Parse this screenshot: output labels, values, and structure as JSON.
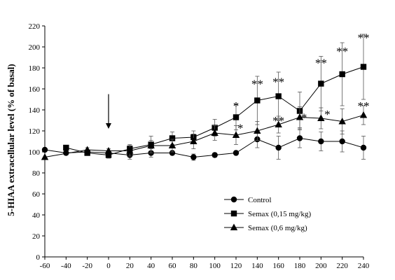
{
  "chart_data": {
    "type": "line",
    "ylabel": "5-HIAA extracellular level (% of basal)",
    "xlabel": "",
    "x": [
      -60,
      -40,
      -20,
      0,
      20,
      40,
      60,
      80,
      100,
      120,
      140,
      160,
      180,
      200,
      220,
      240
    ],
    "x_ticks": [
      "-60",
      "-40",
      "-20",
      "0",
      "20",
      "40",
      "60",
      "80",
      "100",
      "120",
      "140",
      "160",
      "180",
      "200",
      "220",
      "240"
    ],
    "y_ticks": [
      "0",
      "20",
      "40",
      "60",
      "80",
      "100",
      "120",
      "140",
      "160",
      "180",
      "200",
      "220"
    ],
    "xlim": [
      -60,
      240
    ],
    "ylim": [
      0,
      220
    ],
    "grid": false,
    "legend_position": "bottom-right",
    "injection_arrow": {
      "x": 0,
      "y_from": 155,
      "y_to": 122
    },
    "series": [
      {
        "name": "Control",
        "marker": "circle",
        "values": [
          102,
          99,
          100,
          99,
          97,
          99,
          99,
          95,
          97,
          99,
          112,
          104,
          113,
          110,
          110,
          104
        ],
        "errors": [
          0,
          2,
          2,
          2,
          4,
          4,
          2,
          3,
          2,
          2,
          8,
          11,
          9,
          9,
          10,
          11
        ]
      },
      {
        "name": "Semax (0,15 mg/kg)",
        "marker": "square",
        "values": [
          null,
          104,
          99,
          97,
          103,
          107,
          113,
          114,
          123,
          133,
          149,
          153,
          139,
          165,
          174,
          181
        ],
        "errors": [
          0,
          2,
          2,
          3,
          4,
          8,
          6,
          6,
          8,
          12,
          23,
          23,
          18,
          26,
          30,
          31
        ]
      },
      {
        "name": "Semax (0,6 mg/kg)",
        "marker": "triangle",
        "values": [
          95,
          null,
          102,
          101,
          101,
          106,
          106,
          110,
          118,
          116,
          120,
          126,
          133,
          132,
          129,
          135
        ],
        "errors": [
          0,
          0,
          2,
          2,
          5,
          5,
          6,
          7,
          7,
          9,
          9,
          8,
          10,
          10,
          12,
          9
        ]
      }
    ],
    "annotations": [
      {
        "text": "*",
        "x": 120,
        "y": 144
      },
      {
        "text": "*",
        "x": 124,
        "y": 123
      },
      {
        "text": "**",
        "x": 140,
        "y": 165
      },
      {
        "text": "**",
        "x": 160,
        "y": 167
      },
      {
        "text": "**",
        "x": 160,
        "y": 130
      },
      {
        "text": "*",
        "x": 184,
        "y": 133
      },
      {
        "text": "**",
        "x": 200,
        "y": 185
      },
      {
        "text": "*",
        "x": 206,
        "y": 136
      },
      {
        "text": "**",
        "x": 220,
        "y": 196
      },
      {
        "text": "**",
        "x": 240,
        "y": 209
      },
      {
        "text": "**",
        "x": 240,
        "y": 144
      }
    ]
  }
}
